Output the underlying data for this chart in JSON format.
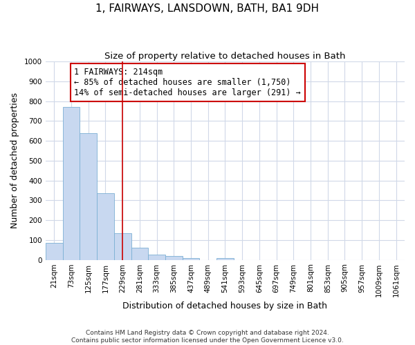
{
  "title": "1, FAIRWAYS, LANSDOWN, BATH, BA1 9DH",
  "subtitle": "Size of property relative to detached houses in Bath",
  "xlabel": "Distribution of detached houses by size in Bath",
  "ylabel": "Number of detached properties",
  "bar_color": "#c8d8f0",
  "bar_edge_color": "#7bafd4",
  "background_color": "#ffffff",
  "fig_background_color": "#ffffff",
  "categories": [
    "21sqm",
    "73sqm",
    "125sqm",
    "177sqm",
    "229sqm",
    "281sqm",
    "333sqm",
    "385sqm",
    "437sqm",
    "489sqm",
    "541sqm",
    "593sqm",
    "645sqm",
    "697sqm",
    "749sqm",
    "801sqm",
    "853sqm",
    "905sqm",
    "957sqm",
    "1009sqm",
    "1061sqm"
  ],
  "values": [
    85,
    770,
    640,
    335,
    135,
    60,
    25,
    20,
    10,
    0,
    10,
    0,
    0,
    0,
    0,
    0,
    0,
    0,
    0,
    0,
    0
  ],
  "ylim": [
    0,
    1000
  ],
  "yticks": [
    0,
    100,
    200,
    300,
    400,
    500,
    600,
    700,
    800,
    900,
    1000
  ],
  "vline_position": 4.0,
  "vline_color": "#cc0000",
  "annotation_text": "1 FAIRWAYS: 214sqm\n← 85% of detached houses are smaller (1,750)\n14% of semi-detached houses are larger (291) →",
  "annotation_box_color": "#ffffff",
  "annotation_box_edge_color": "#cc0000",
  "footer_text": "Contains HM Land Registry data © Crown copyright and database right 2024.\nContains public sector information licensed under the Open Government Licence v3.0.",
  "grid_color": "#d0d8e8",
  "title_fontsize": 11,
  "subtitle_fontsize": 9.5,
  "tick_fontsize": 7.5,
  "label_fontsize": 9,
  "annotation_fontsize": 8.5
}
